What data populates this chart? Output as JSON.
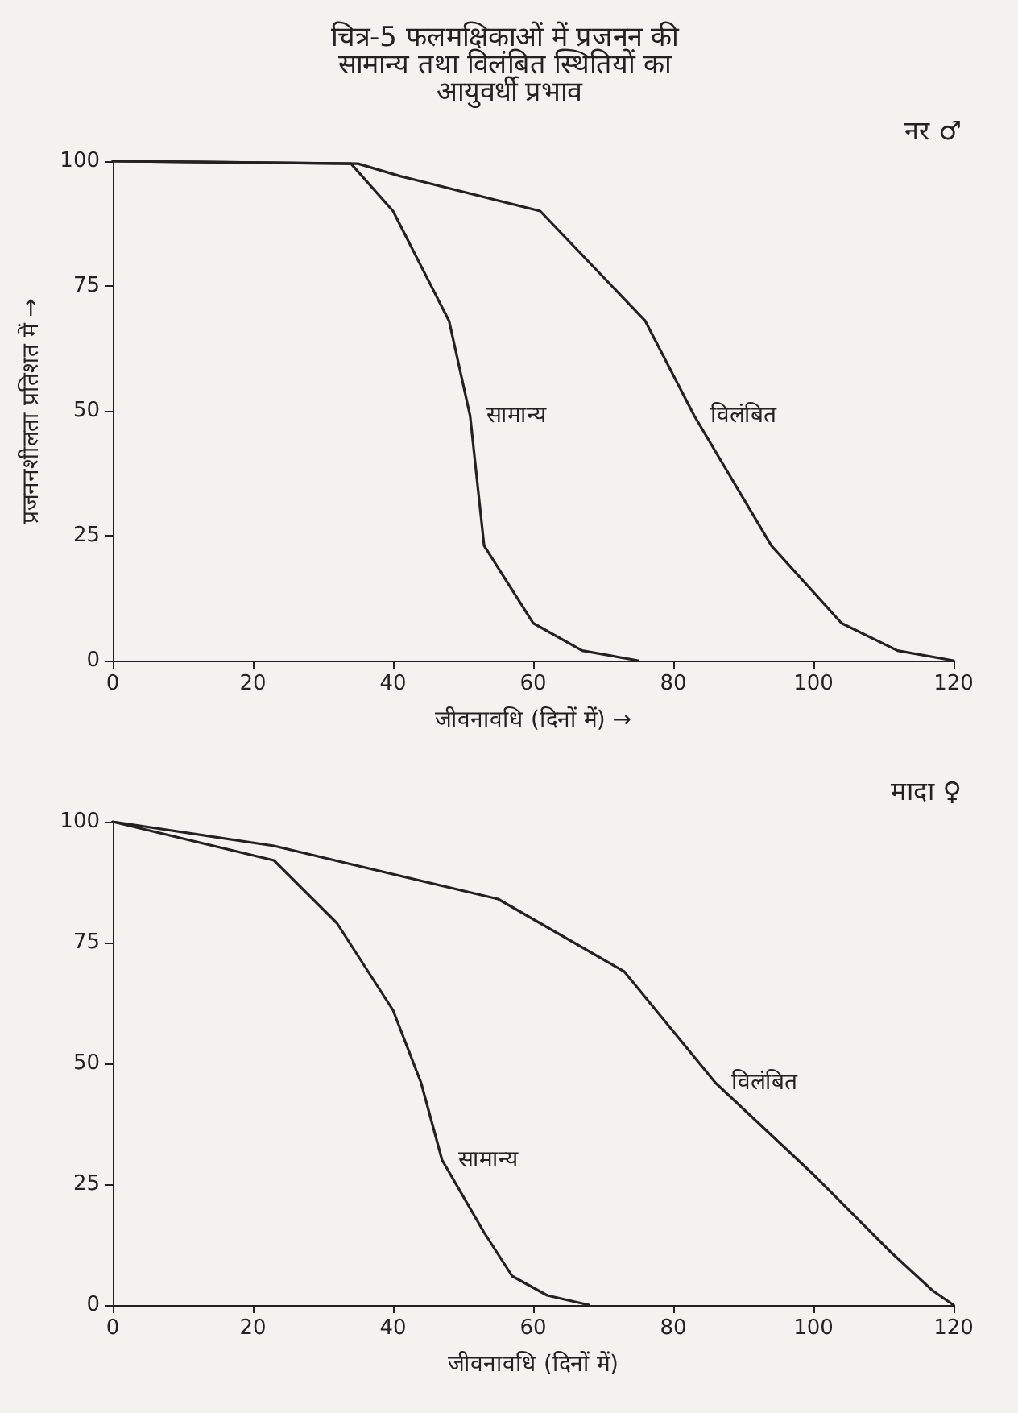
{
  "chart_data": [
    {
      "type": "line",
      "title": "चित्र-5 फलमक्षिकाओं में प्रजनन की सामान्य तथा विलंबित स्थितियों का आयुवर्धी प्रभाव",
      "subtitle": "नर ♂",
      "xlabel": "जीवनावधि (दिनों में) →",
      "ylabel": "प्रजननशीलता प्रतिशत में →",
      "xlim": [
        0,
        120
      ],
      "xticks": [
        0,
        20,
        40,
        60,
        80,
        100,
        120
      ],
      "ylim": [
        0,
        100
      ],
      "yticks": [
        0,
        25,
        50,
        75,
        100
      ],
      "marker": "none",
      "series": [
        {
          "name": "सामान्य",
          "color": "#222222",
          "x": [
            0,
            34,
            40,
            48,
            51,
            53,
            60,
            67,
            75
          ],
          "values": [
            100,
            99.5,
            90,
            68,
            49,
            23,
            7.5,
            2,
            0
          ]
        },
        {
          "name": "विलंबित",
          "color": "#222222",
          "x": [
            0,
            35,
            41,
            61,
            76,
            83,
            94,
            104,
            112,
            120
          ],
          "values": [
            100,
            99.5,
            97,
            90,
            68,
            49,
            23,
            7.5,
            2,
            0
          ]
        }
      ]
    },
    {
      "type": "line",
      "subtitle": "मादा ♀",
      "xlabel": "जीवनावधि (दिनों में)",
      "xlim": [
        0,
        120
      ],
      "xticks": [
        0,
        20,
        40,
        60,
        80,
        100,
        120
      ],
      "ylim": [
        0,
        100
      ],
      "yticks": [
        0,
        25,
        50,
        75,
        100
      ],
      "marker": "none",
      "series": [
        {
          "name": "सामान्य",
          "color": "#222222",
          "x": [
            0,
            23,
            32,
            40,
            44,
            47,
            53,
            57,
            62,
            68
          ],
          "values": [
            100,
            92,
            79,
            61,
            46,
            30,
            15,
            6,
            2,
            0
          ]
        },
        {
          "name": "विलंबित",
          "color": "#222222",
          "x": [
            0,
            23,
            55,
            73,
            86,
            100,
            111,
            117,
            120
          ],
          "values": [
            100,
            95,
            84,
            69,
            46,
            27,
            11,
            3,
            0
          ]
        }
      ]
    }
  ]
}
